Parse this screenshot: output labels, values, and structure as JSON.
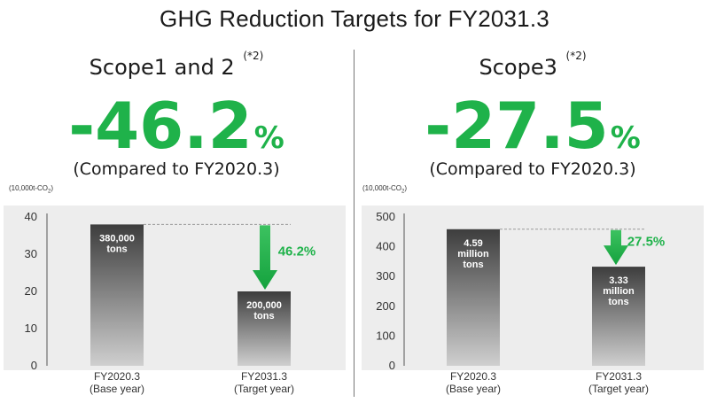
{
  "page": {
    "title": "GHG Reduction Targets for FY2031.3"
  },
  "colors": {
    "accent_green": "#1fb24a",
    "bar_dark": "#3d3d3d",
    "bar_light": "#cfcfcf",
    "plot_background": "#ededed"
  },
  "panels": [
    {
      "scope_title": "Scope1 and 2",
      "note": "(*2)",
      "reduction_value": "-46.2",
      "reduction_unit": "%",
      "comparison": "(Compared to FY2020.3)",
      "unit_prefix": "(10,000t-CO",
      "unit_sub": "2",
      "unit_suffix": ")"
    },
    {
      "scope_title": "Scope3",
      "note": "(*2)",
      "reduction_value": "-27.5",
      "reduction_unit": "%",
      "comparison": "(Compared to FY2020.3)",
      "unit_prefix": "(10,000t-CO",
      "unit_sub": "2",
      "unit_suffix": ")"
    }
  ],
  "chart_data": [
    {
      "type": "bar",
      "categories": [
        "FY2020.3",
        "FY2031.3"
      ],
      "category_sublabels": [
        "(Base year)",
        "(Target year)"
      ],
      "values": [
        38,
        20
      ],
      "bar_labels": [
        [
          "380,000",
          "tons"
        ],
        [
          "200,000",
          "tons"
        ]
      ],
      "ylim": [
        0,
        40
      ],
      "yticks": [
        0,
        10,
        20,
        30,
        40
      ],
      "ylabel": "(10,000t-CO2)",
      "reduction_label": "46.2%",
      "grid": false
    },
    {
      "type": "bar",
      "categories": [
        "FY2020.3",
        "FY2031.3"
      ],
      "category_sublabels": [
        "(Base year)",
        "(Target year)"
      ],
      "values": [
        459,
        333
      ],
      "bar_labels": [
        [
          "4.59",
          "million",
          "tons"
        ],
        [
          "3.33",
          "million",
          "tons"
        ]
      ],
      "ylim": [
        0,
        500
      ],
      "yticks": [
        0,
        100,
        200,
        300,
        400,
        500
      ],
      "ylabel": "(10,000t-CO2)",
      "reduction_label": "27.5%",
      "grid": false
    }
  ]
}
